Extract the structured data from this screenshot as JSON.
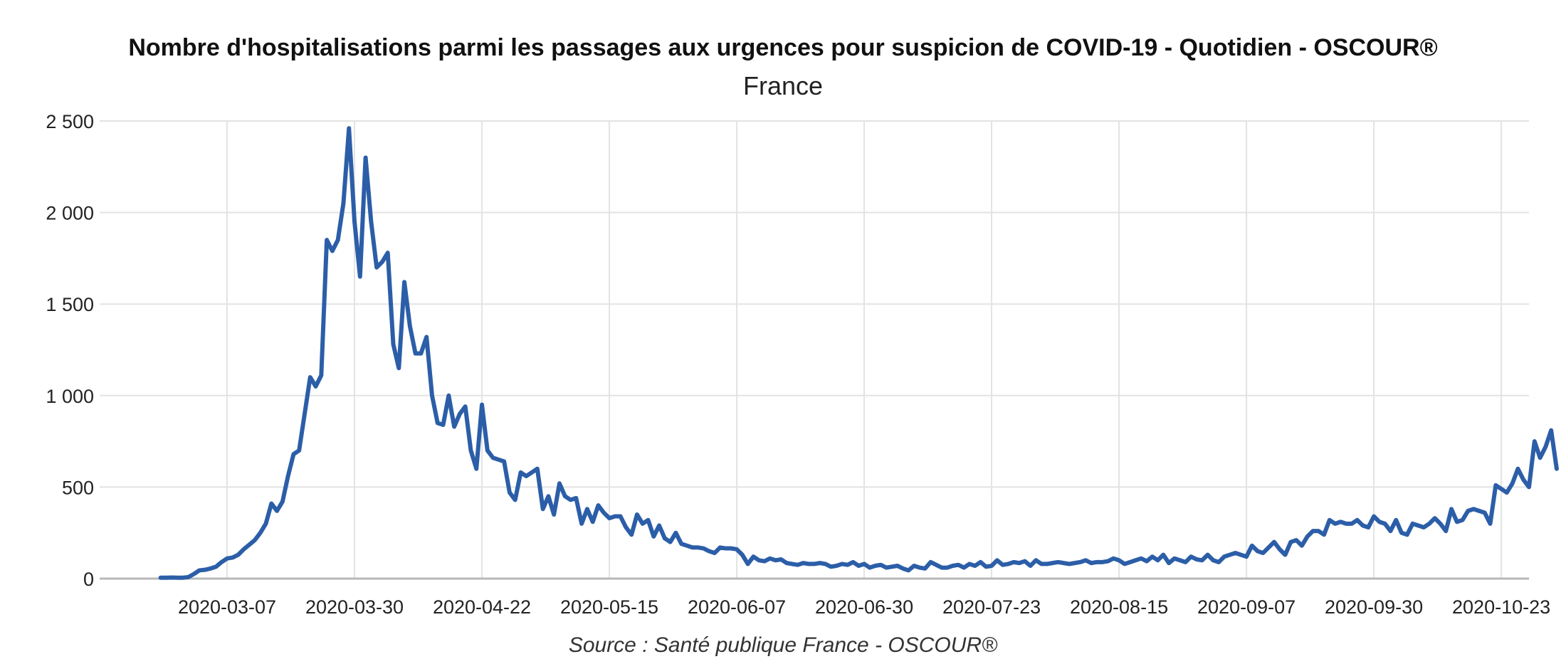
{
  "chart_data": {
    "type": "line",
    "title": "Nombre d'hospitalisations parmi les passages aux urgences pour suspicion de COVID-19 - Quotidien - OSCOUR®",
    "subtitle": "France",
    "source": "Source : Santé publique France - OSCOUR®",
    "xlabel": "",
    "ylabel": "",
    "x_start": "2020-02-24",
    "x_range": [
      "2020-02-13",
      "2020-10-28"
    ],
    "ylim": [
      0,
      2500
    ],
    "grid": true,
    "legend": "none",
    "line_color": "#2c5ea8",
    "x_ticks": [
      {
        "date": "2020-03-07",
        "label": "2020-03-07"
      },
      {
        "date": "2020-03-30",
        "label": "2020-03-30"
      },
      {
        "date": "2020-04-22",
        "label": "2020-04-22"
      },
      {
        "date": "2020-05-15",
        "label": "2020-05-15"
      },
      {
        "date": "2020-06-07",
        "label": "2020-06-07"
      },
      {
        "date": "2020-06-30",
        "label": "2020-06-30"
      },
      {
        "date": "2020-07-23",
        "label": "2020-07-23"
      },
      {
        "date": "2020-08-15",
        "label": "2020-08-15"
      },
      {
        "date": "2020-09-07",
        "label": "2020-09-07"
      },
      {
        "date": "2020-09-30",
        "label": "2020-09-30"
      },
      {
        "date": "2020-10-23",
        "label": "2020-10-23"
      }
    ],
    "y_ticks": [
      {
        "value": 0,
        "label": "0"
      },
      {
        "value": 500,
        "label": "500"
      },
      {
        "value": 1000,
        "label": "1 000"
      },
      {
        "value": 1500,
        "label": "1 500"
      },
      {
        "value": 2000,
        "label": "2 000"
      },
      {
        "value": 2500,
        "label": "2 500"
      }
    ],
    "series": [
      {
        "values": [
          5,
          5,
          6,
          5,
          5,
          8,
          25,
          45,
          48,
          55,
          65,
          90,
          110,
          115,
          130,
          160,
          185,
          210,
          250,
          300,
          410,
          370,
          420,
          560,
          680,
          700,
          900,
          1100,
          1050,
          1110,
          1850,
          1790,
          1850,
          2050,
          2460,
          1950,
          1650,
          2300,
          1950,
          1700,
          1730,
          1780,
          1280,
          1150,
          1620,
          1380,
          1230,
          1230,
          1320,
          1000,
          850,
          840,
          1000,
          830,
          900,
          940,
          700,
          600,
          950,
          700,
          660,
          650,
          640,
          470,
          430,
          580,
          560,
          580,
          600,
          380,
          450,
          350,
          520,
          450,
          430,
          440,
          300,
          380,
          310,
          400,
          360,
          330,
          340,
          340,
          280,
          240,
          350,
          300,
          320,
          230,
          290,
          220,
          200,
          250,
          190,
          180,
          170,
          170,
          165,
          150,
          140,
          170,
          165,
          165,
          160,
          130,
          80,
          120,
          100,
          95,
          110,
          100,
          105,
          85,
          80,
          75,
          85,
          80,
          80,
          85,
          80,
          65,
          70,
          80,
          75,
          90,
          70,
          80,
          60,
          70,
          75,
          60,
          65,
          70,
          55,
          45,
          70,
          60,
          55,
          90,
          75,
          60,
          60,
          70,
          75,
          60,
          80,
          70,
          90,
          65,
          70,
          100,
          75,
          80,
          90,
          85,
          95,
          70,
          100,
          80,
          80,
          85,
          90,
          85,
          80,
          85,
          90,
          100,
          85,
          90,
          90,
          95,
          110,
          100,
          80,
          90,
          100,
          110,
          95,
          120,
          100,
          130,
          85,
          110,
          100,
          90,
          120,
          105,
          100,
          130,
          100,
          90,
          120,
          130,
          140,
          130,
          120,
          180,
          150,
          140,
          170,
          200,
          160,
          130,
          200,
          210,
          180,
          230,
          260,
          260,
          240,
          320,
          300,
          310,
          300,
          300,
          320,
          290,
          280,
          340,
          310,
          300,
          260,
          320,
          250,
          240,
          300,
          290,
          280,
          300,
          330,
          300,
          260,
          380,
          310,
          320,
          370,
          380,
          370,
          360,
          300,
          510,
          490,
          470,
          520,
          600,
          540,
          500,
          750,
          660,
          720,
          810,
          600
        ]
      }
    ]
  }
}
